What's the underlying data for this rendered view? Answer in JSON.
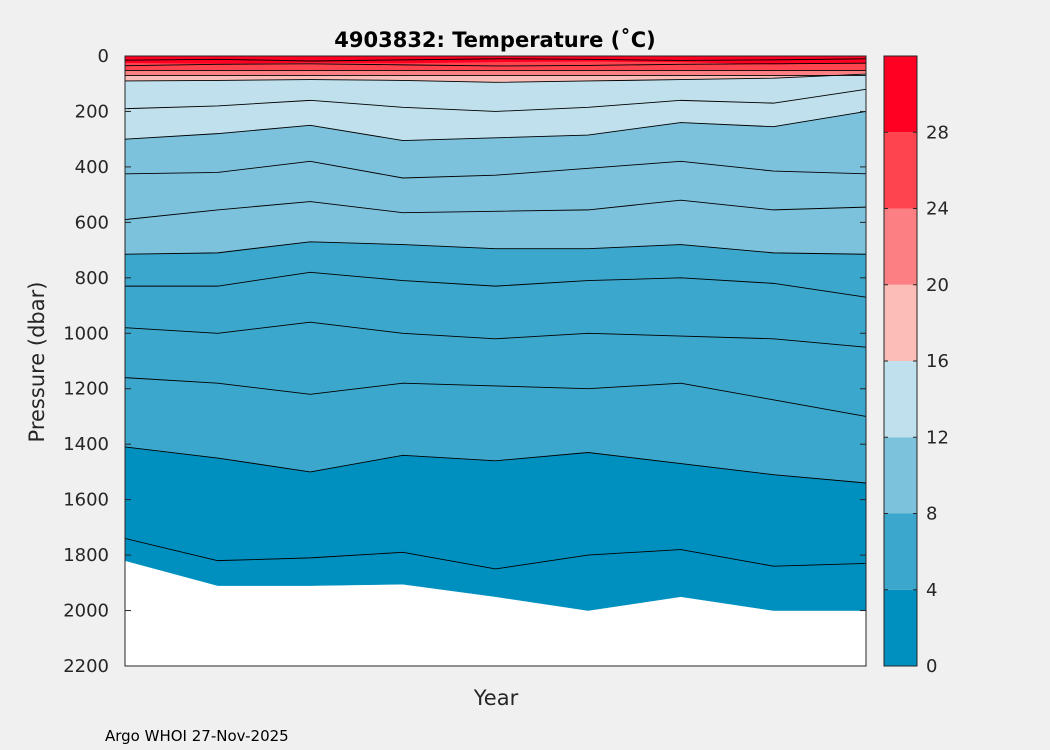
{
  "chart_data": {
    "type": "contour",
    "title": "4903832:  Temperature (˚C)",
    "xlabel": "Year",
    "ylabel": "Pressure (dbar)",
    "ylim": [
      0,
      2200
    ],
    "y_reversed": true,
    "yticks": [
      0,
      200,
      400,
      600,
      800,
      1000,
      1200,
      1400,
      1600,
      1800,
      2000,
      2200
    ],
    "profile_positions": [
      0,
      1,
      2,
      3,
      4,
      5,
      6,
      7,
      8
    ],
    "colorbar": {
      "range": [
        0,
        32
      ],
      "ticks": [
        0,
        4,
        8,
        12,
        16,
        20,
        24,
        28
      ],
      "levels": [
        {
          "from": 0,
          "to": 4,
          "color": "#0090bf"
        },
        {
          "from": 4,
          "to": 8,
          "color": "#3ca7cd"
        },
        {
          "from": 8,
          "to": 12,
          "color": "#7dc2dc"
        },
        {
          "from": 12,
          "to": 16,
          "color": "#bfe0ec"
        },
        {
          "from": 16,
          "to": 20,
          "color": "#fcbcb7"
        },
        {
          "from": 20,
          "to": 24,
          "color": "#fc8083"
        },
        {
          "from": 24,
          "to": 28,
          "color": "#fe444f"
        },
        {
          "from": 28,
          "to": 32,
          "color": "#ff0022"
        }
      ]
    },
    "filled_bands": [
      {
        "color": "#fe444f",
        "top": [
          0,
          0,
          0,
          0,
          0,
          0,
          0,
          0,
          0
        ],
        "bottom": [
          52,
          52,
          52,
          52,
          52,
          52,
          52,
          52,
          52
        ]
      },
      {
        "color": "#fc8083",
        "top": [
          52,
          52,
          52,
          52,
          52,
          52,
          52,
          52,
          52
        ],
        "bottom": [
          70,
          70,
          70,
          70,
          70,
          70,
          70,
          70,
          70
        ]
      },
      {
        "color": "#fcbcb7",
        "top": [
          70,
          70,
          70,
          70,
          70,
          70,
          70,
          70,
          70
        ],
        "bottom": [
          90,
          88,
          85,
          88,
          95,
          90,
          85,
          80,
          65
        ]
      },
      {
        "color": "#bfe0ec",
        "top": [
          90,
          88,
          85,
          88,
          95,
          90,
          85,
          80,
          65
        ],
        "bottom": [
          300,
          280,
          250,
          305,
          295,
          285,
          240,
          255,
          200
        ]
      },
      {
        "color": "#7dc2dc",
        "top": [
          300,
          280,
          250,
          305,
          295,
          285,
          240,
          255,
          200
        ],
        "bottom": [
          715,
          710,
          670,
          680,
          695,
          695,
          680,
          710,
          715
        ]
      },
      {
        "color": "#3ca7cd",
        "top": [
          715,
          710,
          670,
          680,
          695,
          695,
          680,
          710,
          715
        ],
        "bottom": [
          1410,
          1450,
          1500,
          1440,
          1460,
          1430,
          1470,
          1510,
          1540
        ]
      },
      {
        "color": "#0090bf",
        "top": [
          1410,
          1450,
          1500,
          1440,
          1460,
          1430,
          1470,
          1510,
          1540
        ],
        "bottom": [
          1820,
          1910,
          1910,
          1905,
          1950,
          2000,
          1950,
          2000,
          2000
        ]
      }
    ],
    "warm_bands": [
      {
        "color": "#ff0022",
        "x": [
          0,
          1,
          2,
          3,
          4,
          5,
          6,
          7,
          8
        ],
        "top": [
          0,
          0,
          0,
          0,
          0,
          0,
          0,
          0,
          0
        ],
        "bottom": [
          25,
          28,
          24,
          26,
          22,
          20,
          22,
          30,
          25
        ]
      }
    ],
    "contour_lines": [
      [
        15,
        12,
        18,
        14,
        10,
        12,
        16,
        14,
        10
      ],
      [
        35,
        30,
        28,
        32,
        36,
        34,
        30,
        28,
        26
      ],
      [
        52,
        52,
        52,
        52,
        52,
        52,
        52,
        52,
        52
      ],
      [
        70,
        70,
        70,
        70,
        70,
        70,
        70,
        70,
        70
      ],
      [
        90,
        88,
        85,
        88,
        95,
        90,
        85,
        80,
        65
      ],
      [
        190,
        180,
        160,
        185,
        200,
        185,
        160,
        170,
        120
      ],
      [
        300,
        280,
        250,
        305,
        295,
        285,
        240,
        255,
        200
      ],
      [
        425,
        420,
        380,
        440,
        430,
        405,
        380,
        415,
        425
      ],
      [
        590,
        555,
        525,
        565,
        560,
        555,
        520,
        555,
        545
      ],
      [
        715,
        710,
        670,
        680,
        695,
        695,
        680,
        710,
        715
      ],
      [
        830,
        830,
        780,
        810,
        830,
        810,
        800,
        820,
        870
      ],
      [
        980,
        1000,
        960,
        1000,
        1020,
        1000,
        1010,
        1020,
        1050
      ],
      [
        1160,
        1180,
        1220,
        1180,
        1190,
        1200,
        1180,
        1240,
        1300
      ],
      [
        1410,
        1450,
        1500,
        1440,
        1460,
        1430,
        1470,
        1510,
        1540
      ],
      [
        1740,
        1820,
        1810,
        1790,
        1850,
        1800,
        1780,
        1840,
        1830
      ]
    ],
    "no_data_floor": [
      1820,
      1910,
      1910,
      1905,
      1950,
      2000,
      1950,
      2000,
      2000
    ]
  },
  "credit": "Argo WHOI 27-Nov-2025"
}
